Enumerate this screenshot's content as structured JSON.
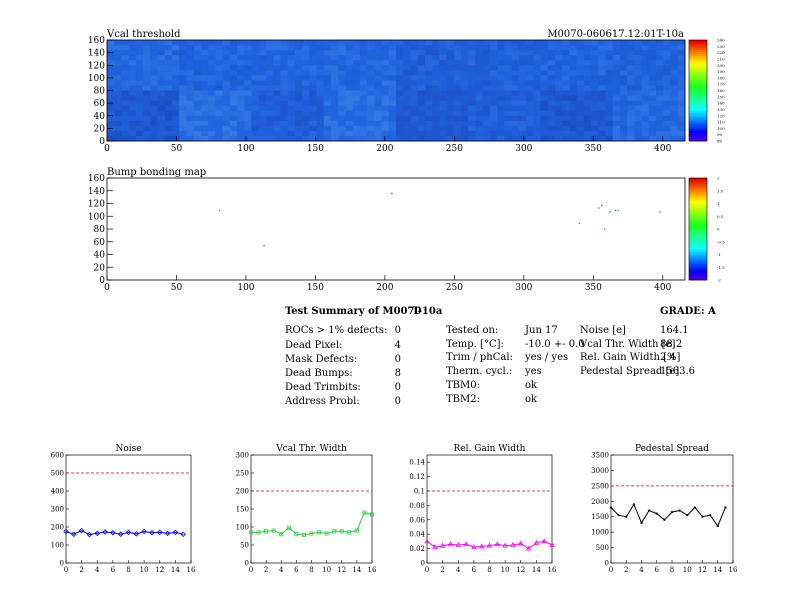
{
  "vcal": {
    "title": "Vcal threshold",
    "module_label": "M0070-060617.12:01T-10a",
    "x_ticks": [
      "0",
      "50",
      "100",
      "150",
      "200",
      "250",
      "300",
      "350",
      "400"
    ],
    "y_ticks": [
      "0",
      "20",
      "40",
      "60",
      "80",
      "100",
      "120",
      "140",
      "160"
    ],
    "z_ticks": [
      "240",
      "230",
      "220",
      "210",
      "200",
      "190",
      "180",
      "170",
      "160",
      "150",
      "140",
      "130",
      "120",
      "110",
      "100",
      "90",
      "80"
    ]
  },
  "bump": {
    "title": "Bump bonding map",
    "x_ticks": [
      "0",
      "50",
      "100",
      "150",
      "200",
      "250",
      "300",
      "350",
      "400"
    ],
    "y_ticks": [
      "0",
      "20",
      "40",
      "60",
      "80",
      "100",
      "120",
      "140",
      "160"
    ],
    "z_ticks": [
      "2",
      "1.5",
      "1",
      "0.5",
      "0",
      "-0.5",
      "-1",
      "-1.5",
      "-2"
    ]
  },
  "summary": {
    "title": "Test Summary of M0070",
    "tag": "T-10a",
    "grade": "GRADE:  A",
    "defects": [
      {
        "label": "ROCs > 1% defects:",
        "value": "0"
      },
      {
        "label": "Dead Pixel:",
        "value": "4"
      },
      {
        "label": "Mask Defects:",
        "value": "0"
      },
      {
        "label": "Dead Bumps:",
        "value": "8"
      },
      {
        "label": "Dead Trimbits:",
        "value": "0"
      },
      {
        "label": "Address Probl:",
        "value": "0"
      }
    ],
    "conditions": [
      {
        "label": "Tested on:",
        "value": "Jun 17"
      },
      {
        "label": "Temp. [°C]:",
        "value": "-10.0 +- 0.0"
      },
      {
        "label": "Trim / phCal:",
        "value": "yes / yes"
      },
      {
        "label": "Therm. cycl.:",
        "value": "yes"
      },
      {
        "label": "TBM0:",
        "value": "ok"
      },
      {
        "label": "TBM2:",
        "value": "ok"
      }
    ],
    "params": [
      {
        "label": "Noise [e]",
        "value": "164.1"
      },
      {
        "label": "Vcal Thr. Width [e]",
        "value": "88.2"
      },
      {
        "label": "Rel. Gain Width [%]",
        "value": "2.4"
      },
      {
        "label": "Pedestal Spread [e]",
        "value": "1563.6"
      }
    ]
  },
  "chart_data": [
    {
      "type": "heatmap",
      "title": "Vcal threshold",
      "xlim": [
        0,
        416
      ],
      "ylim": [
        0,
        160
      ],
      "zlim": [
        80,
        250
      ],
      "block_means": [
        [
          125,
          123,
          124,
          125,
          118,
          120,
          122,
          121
        ],
        [
          112,
          130,
          117,
          129,
          114,
          118,
          112,
          126
        ]
      ]
    },
    {
      "type": "scatter",
      "title": "Bump bonding map",
      "xlim": [
        0,
        416
      ],
      "ylim": [
        0,
        160
      ],
      "zlim": [
        -2,
        2
      ],
      "x": [
        81,
        113,
        205,
        340,
        354,
        356,
        358,
        362,
        366,
        368,
        398
      ],
      "y": [
        109,
        54,
        136,
        89,
        113,
        117,
        80,
        107,
        109,
        109,
        107
      ]
    },
    {
      "type": "line",
      "title": "Noise",
      "x": [
        0,
        1,
        2,
        3,
        4,
        5,
        6,
        7,
        8,
        9,
        10,
        11,
        12,
        13,
        14,
        15
      ],
      "values": [
        175,
        160,
        180,
        158,
        165,
        172,
        168,
        160,
        170,
        162,
        175,
        168,
        170,
        165,
        170,
        160
      ],
      "reference": 500,
      "xlim": [
        0,
        16
      ],
      "ylim": [
        0,
        600
      ],
      "x_ticks": [
        "0",
        "2",
        "4",
        "6",
        "8",
        "10",
        "12",
        "14",
        "16"
      ],
      "y_ticks": [
        "0",
        "100",
        "200",
        "300",
        "400",
        "500",
        "600"
      ],
      "color": "#0000ff"
    },
    {
      "type": "line",
      "title": "Vcal Thr. Width",
      "x": [
        0,
        1,
        2,
        3,
        4,
        5,
        6,
        7,
        8,
        9,
        10,
        11,
        12,
        13,
        14,
        15,
        16
      ],
      "values": [
        85,
        85,
        88,
        90,
        80,
        98,
        80,
        78,
        82,
        85,
        82,
        88,
        88,
        85,
        90,
        140,
        135
      ],
      "reference": 200,
      "xlim": [
        0,
        16
      ],
      "ylim": [
        0,
        300
      ],
      "x_ticks": [
        "0",
        "2",
        "4",
        "6",
        "8",
        "10",
        "12",
        "14",
        "16"
      ],
      "y_ticks": [
        "0",
        "50",
        "100",
        "150",
        "200",
        "250",
        "300"
      ],
      "color": "#2ecc40"
    },
    {
      "type": "line",
      "title": "Rel. Gain Width",
      "x": [
        0,
        1,
        2,
        3,
        4,
        5,
        6,
        7,
        8,
        9,
        10,
        11,
        12,
        13,
        14,
        15,
        16
      ],
      "values": [
        0.03,
        0.022,
        0.024,
        0.026,
        0.025,
        0.026,
        0.022,
        0.023,
        0.024,
        0.026,
        0.024,
        0.025,
        0.027,
        0.02,
        0.028,
        0.03,
        0.025
      ],
      "reference": 0.1,
      "xlim": [
        0,
        16
      ],
      "ylim": [
        0,
        0.15
      ],
      "x_ticks": [
        "0",
        "2",
        "4",
        "6",
        "8",
        "10",
        "12",
        "14",
        "16"
      ],
      "y_ticks": [
        "0",
        "0.02",
        "0.04",
        "0.06",
        "0.08",
        "0.1",
        "0.12",
        "0.14"
      ],
      "color": "#ff00ff"
    },
    {
      "type": "line",
      "title": "Pedestal Spread",
      "x": [
        0,
        1,
        2,
        3,
        4,
        5,
        6,
        7,
        8,
        9,
        10,
        11,
        12,
        13,
        14,
        15
      ],
      "values": [
        1800,
        1550,
        1500,
        1900,
        1300,
        1700,
        1600,
        1400,
        1650,
        1700,
        1550,
        1800,
        1500,
        1550,
        1200,
        1800
      ],
      "reference": 2500,
      "xlim": [
        0,
        16
      ],
      "ylim": [
        0,
        3500
      ],
      "x_ticks": [
        "0",
        "2",
        "4",
        "6",
        "8",
        "10",
        "12",
        "14",
        "16"
      ],
      "y_ticks": [
        "0",
        "500",
        "1000",
        "1500",
        "2000",
        "2500",
        "3000",
        "3500"
      ],
      "color": "#000000"
    }
  ]
}
